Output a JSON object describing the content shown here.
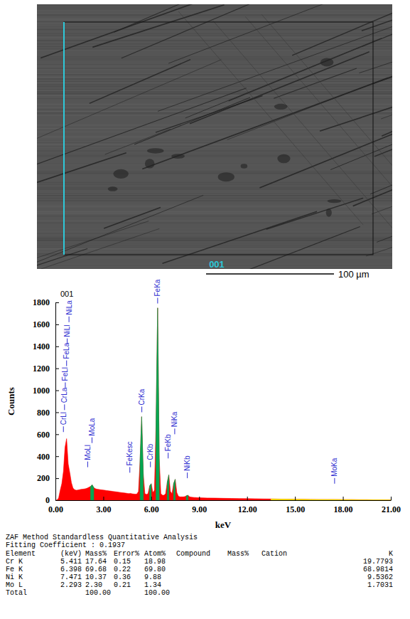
{
  "image": {
    "label": "001",
    "scale_bar": "100 µm"
  },
  "chart_data": {
    "type": "area",
    "title": "001",
    "x_label": "keV",
    "y_label": "Counts",
    "x": [
      0,
      0.1,
      0.2,
      0.3,
      0.4,
      0.5,
      0.6,
      0.7,
      0.8,
      0.9,
      1,
      1.1,
      1.2,
      1.3,
      1.4,
      1.5,
      1.6,
      1.7,
      1.8,
      1.9,
      2,
      2.1,
      2.2,
      2.3,
      2.4,
      2.5,
      2.6,
      2.7,
      2.8,
      2.9,
      3,
      3.1,
      3.2,
      3.3,
      3.4,
      3.5,
      3.6,
      3.7,
      3.8,
      3.9,
      4,
      4.1,
      4.2,
      4.3,
      4.4,
      4.5,
      4.6,
      4.7,
      4.8,
      4.9,
      5,
      5.1,
      5.2,
      5.3,
      5.4,
      5.5,
      5.6,
      5.7,
      5.8,
      5.9,
      6,
      6.1,
      6.2,
      6.3,
      6.4,
      6.5,
      6.6,
      6.7,
      6.8,
      6.9,
      7,
      7.1,
      7.2,
      7.3,
      7.4,
      7.5,
      7.6,
      7.7,
      7.8,
      7.9,
      8,
      8.1,
      8.2,
      8.3,
      8.4,
      8.5,
      8.6,
      8.7,
      8.8,
      8.9,
      9,
      9.5,
      10,
      10.5,
      11,
      11.5,
      12,
      12.5,
      13,
      13.5,
      14,
      14.5,
      15,
      15.5,
      16,
      16.5,
      17,
      17.5,
      18,
      18.5,
      19,
      19.5,
      20,
      20.5,
      21
    ],
    "series": [
      {
        "color": "#ff0000",
        "values": [
          0,
          0,
          20,
          90,
          150,
          260,
          480,
          560,
          330,
          250,
          160,
          110,
          95,
          90,
          92,
          95,
          98,
          100,
          102,
          105,
          110,
          118,
          125,
          140,
          115,
          105,
          100,
          98,
          96,
          94,
          92,
          90,
          88,
          86,
          84,
          82,
          80,
          78,
          76,
          74,
          72,
          70,
          68,
          66,
          64,
          62,
          60,
          62,
          58,
          56,
          55,
          56,
          80,
          360,
          760,
          240,
          60,
          52,
          60,
          130,
          150,
          70,
          90,
          700,
          1750,
          380,
          60,
          45,
          45,
          60,
          160,
          230,
          80,
          60,
          150,
          190,
          70,
          35,
          30,
          30,
          30,
          32,
          40,
          45,
          30,
          28,
          26,
          25,
          24,
          23,
          22,
          20,
          19,
          17,
          16,
          15,
          14,
          13,
          12,
          11,
          10,
          9,
          8,
          8,
          7,
          6,
          6,
          6,
          5,
          5,
          4,
          4,
          3,
          3,
          2
        ]
      },
      {
        "color": "#00a651",
        "values": [
          null,
          null,
          null,
          null,
          null,
          null,
          null,
          null,
          null,
          null,
          null,
          null,
          null,
          null,
          null,
          null,
          null,
          null,
          null,
          null,
          null,
          null,
          125,
          140,
          115,
          null,
          null,
          null,
          null,
          null,
          null,
          null,
          null,
          null,
          null,
          null,
          null,
          null,
          null,
          null,
          null,
          null,
          null,
          null,
          null,
          null,
          null,
          null,
          null,
          null,
          null,
          null,
          null,
          360,
          760,
          240,
          null,
          null,
          null,
          130,
          150,
          null,
          null,
          700,
          1750,
          380,
          null,
          null,
          null,
          null,
          160,
          230,
          null,
          null,
          150,
          190,
          null,
          null,
          null,
          null,
          null,
          null,
          40,
          45,
          null,
          null,
          null,
          null,
          null,
          null,
          null,
          null,
          null,
          null,
          null,
          null,
          null,
          null,
          null,
          null,
          null,
          null,
          null,
          null,
          null,
          null,
          null,
          null,
          null,
          null,
          null,
          null,
          null,
          null,
          null
        ]
      },
      {
        "color": "#f2e600",
        "values": [
          null,
          null,
          null,
          null,
          null,
          null,
          null,
          null,
          null,
          null,
          null,
          null,
          null,
          null,
          null,
          null,
          null,
          null,
          null,
          null,
          null,
          null,
          null,
          null,
          null,
          null,
          null,
          null,
          null,
          null,
          null,
          null,
          null,
          null,
          null,
          null,
          null,
          null,
          null,
          null,
          null,
          null,
          null,
          null,
          null,
          null,
          null,
          null,
          null,
          null,
          null,
          null,
          null,
          null,
          null,
          null,
          null,
          null,
          null,
          null,
          null,
          null,
          null,
          null,
          null,
          null,
          null,
          null,
          null,
          null,
          null,
          null,
          null,
          null,
          null,
          null,
          null,
          null,
          null,
          null,
          null,
          null,
          null,
          null,
          null,
          null,
          null,
          null,
          null,
          null,
          null,
          null,
          null,
          null,
          null,
          null,
          null,
          null,
          null,
          11,
          10,
          9,
          8,
          8,
          7,
          6,
          6,
          6,
          5,
          5,
          4,
          4,
          3,
          3,
          2
        ]
      }
    ],
    "xlim": [
      0,
      21
    ],
    "xticks": [
      {
        "value": 0,
        "label": "0.00"
      },
      {
        "value": 3,
        "label": "3.00"
      },
      {
        "value": 6,
        "label": "6.00"
      },
      {
        "value": 9,
        "label": "9.00"
      },
      {
        "value": 12,
        "label": "12.00"
      },
      {
        "value": 15,
        "label": "15.00"
      },
      {
        "value": 18,
        "label": "18.00"
      },
      {
        "value": 21,
        "label": "21.00"
      }
    ],
    "ylim": [
      0,
      1800
    ],
    "yticks": [
      0,
      200,
      400,
      600,
      800,
      1000,
      1200,
      1400,
      1600,
      1800
    ],
    "annotations": [
      {
        "text": "CrLl",
        "x": 0.5,
        "y": 620
      },
      {
        "text": "CrLa",
        "x": 0.57,
        "y": 820
      },
      {
        "text": "FeLl",
        "x": 0.62,
        "y": 1020
      },
      {
        "text": "FeLa",
        "x": 0.7,
        "y": 1220
      },
      {
        "text": "NiLl",
        "x": 0.74,
        "y": 1420
      },
      {
        "text": "NiLa",
        "x": 0.85,
        "y": 1620
      },
      {
        "text": "MoLl",
        "x": 2.02,
        "y": 300
      },
      {
        "text": "MoLa",
        "x": 2.29,
        "y": 520
      },
      {
        "text": "FeKesc",
        "x": 4.66,
        "y": 250
      },
      {
        "text": "CrKa",
        "x": 5.41,
        "y": 800
      },
      {
        "text": "CrKb",
        "x": 5.95,
        "y": 300
      },
      {
        "text": "FeKa",
        "x": 6.4,
        "y": 1790
      },
      {
        "text": "FeKb",
        "x": 7.06,
        "y": 380
      },
      {
        "text": "NiKa",
        "x": 7.47,
        "y": 600
      },
      {
        "text": "NiKb",
        "x": 8.26,
        "y": 200
      },
      {
        "text": "MoKa",
        "x": 17.48,
        "y": 150
      }
    ]
  },
  "table": {
    "title": "ZAF Method Standardless Quantitative Analysis",
    "subtitle": "Fitting Coefficient : 0.1937",
    "header": [
      "Element",
      "(keV)",
      "Mass%",
      "Error%",
      "Atom%",
      "Compound",
      "Mass%",
      "Cation",
      "K"
    ],
    "rows": [
      {
        "element": "Cr K",
        "kev": "5.411",
        "mass": "17.64",
        "error": "0.15",
        "atom": "18.98",
        "k": "19.7793"
      },
      {
        "element": "Fe K",
        "kev": "6.398",
        "mass": "69.68",
        "error": "0.22",
        "atom": "69.80",
        "k": "68.9814"
      },
      {
        "element": "Ni K",
        "kev": "7.471",
        "mass": "10.37",
        "error": "0.36",
        "atom": "9.88",
        "k": "9.5362"
      },
      {
        "element": "Mo L",
        "kev": "2.293",
        "mass": "2.30",
        "error": "0.21",
        "atom": "1.34",
        "k": "1.7031"
      },
      {
        "element": "Total",
        "mass": "100.00",
        "atom": "100.00"
      }
    ]
  }
}
